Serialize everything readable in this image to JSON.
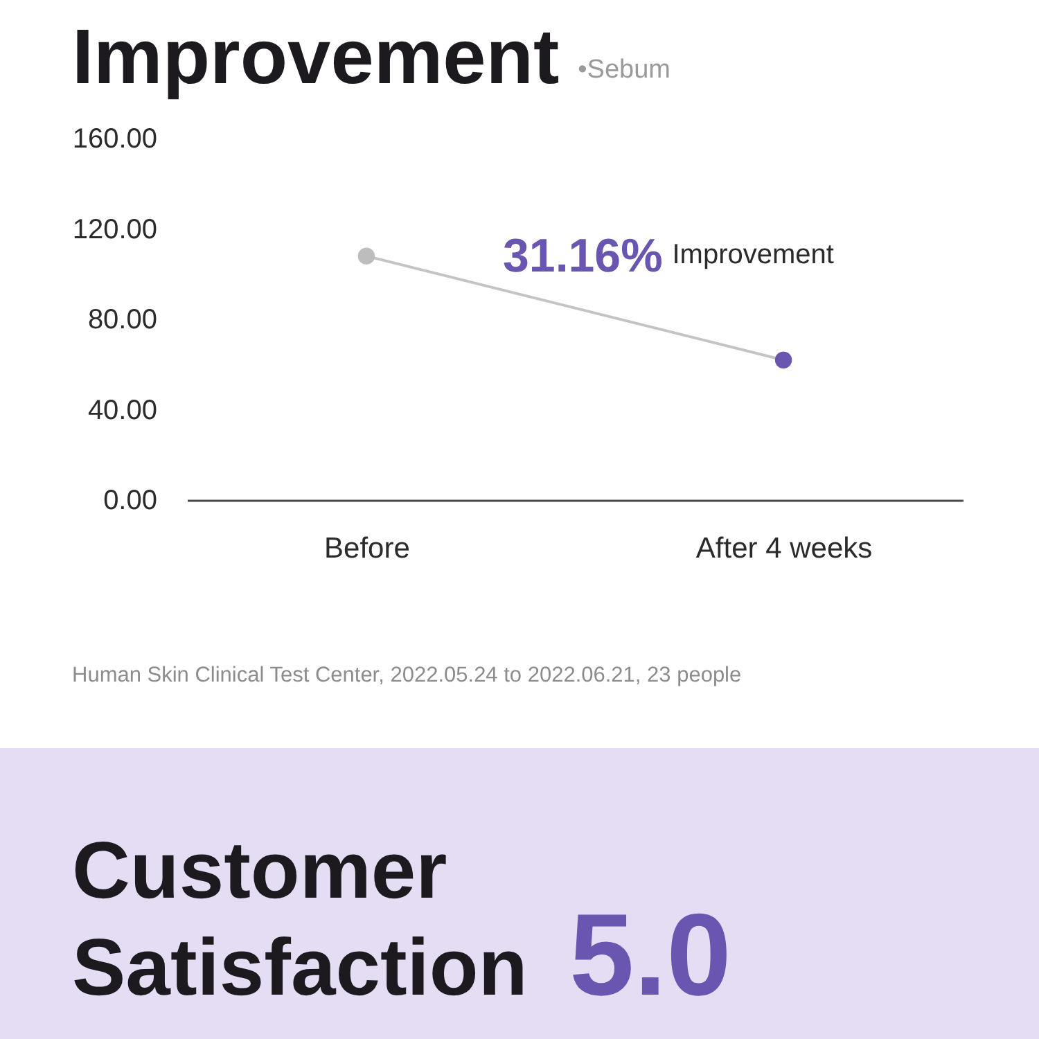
{
  "chart_data": [
    {
      "type": "line",
      "title": "Improvement",
      "subtitle": "•Sebum",
      "categories": [
        "Before",
        "After 4 weeks"
      ],
      "series": [
        {
          "color": "#c4c4c4",
          "colors": [
            "#bdbdbd",
            "#6a55b0"
          ],
          "values": [
            108,
            62
          ]
        }
      ],
      "ylim": [
        0,
        160
      ],
      "yticks": [
        {
          "value": 0,
          "label": "0.00"
        },
        {
          "value": 40,
          "label": "40.00"
        },
        {
          "value": 80,
          "label": "80.00"
        },
        {
          "value": 120,
          "label": "120.00"
        },
        {
          "value": 160,
          "label": "160.00"
        }
      ],
      "marker": "circle",
      "line_style": "solid",
      "grid": false,
      "annotations": [
        "31.16%",
        "Improvement",
        "Human Skin Clinical Test Center, 2022.05.24 to 2022.06.21, 23 people"
      ]
    },
    {
      "type": "other",
      "title": "Customer Satisfaction",
      "annotations": [
        "5.0"
      ]
    }
  ]
}
